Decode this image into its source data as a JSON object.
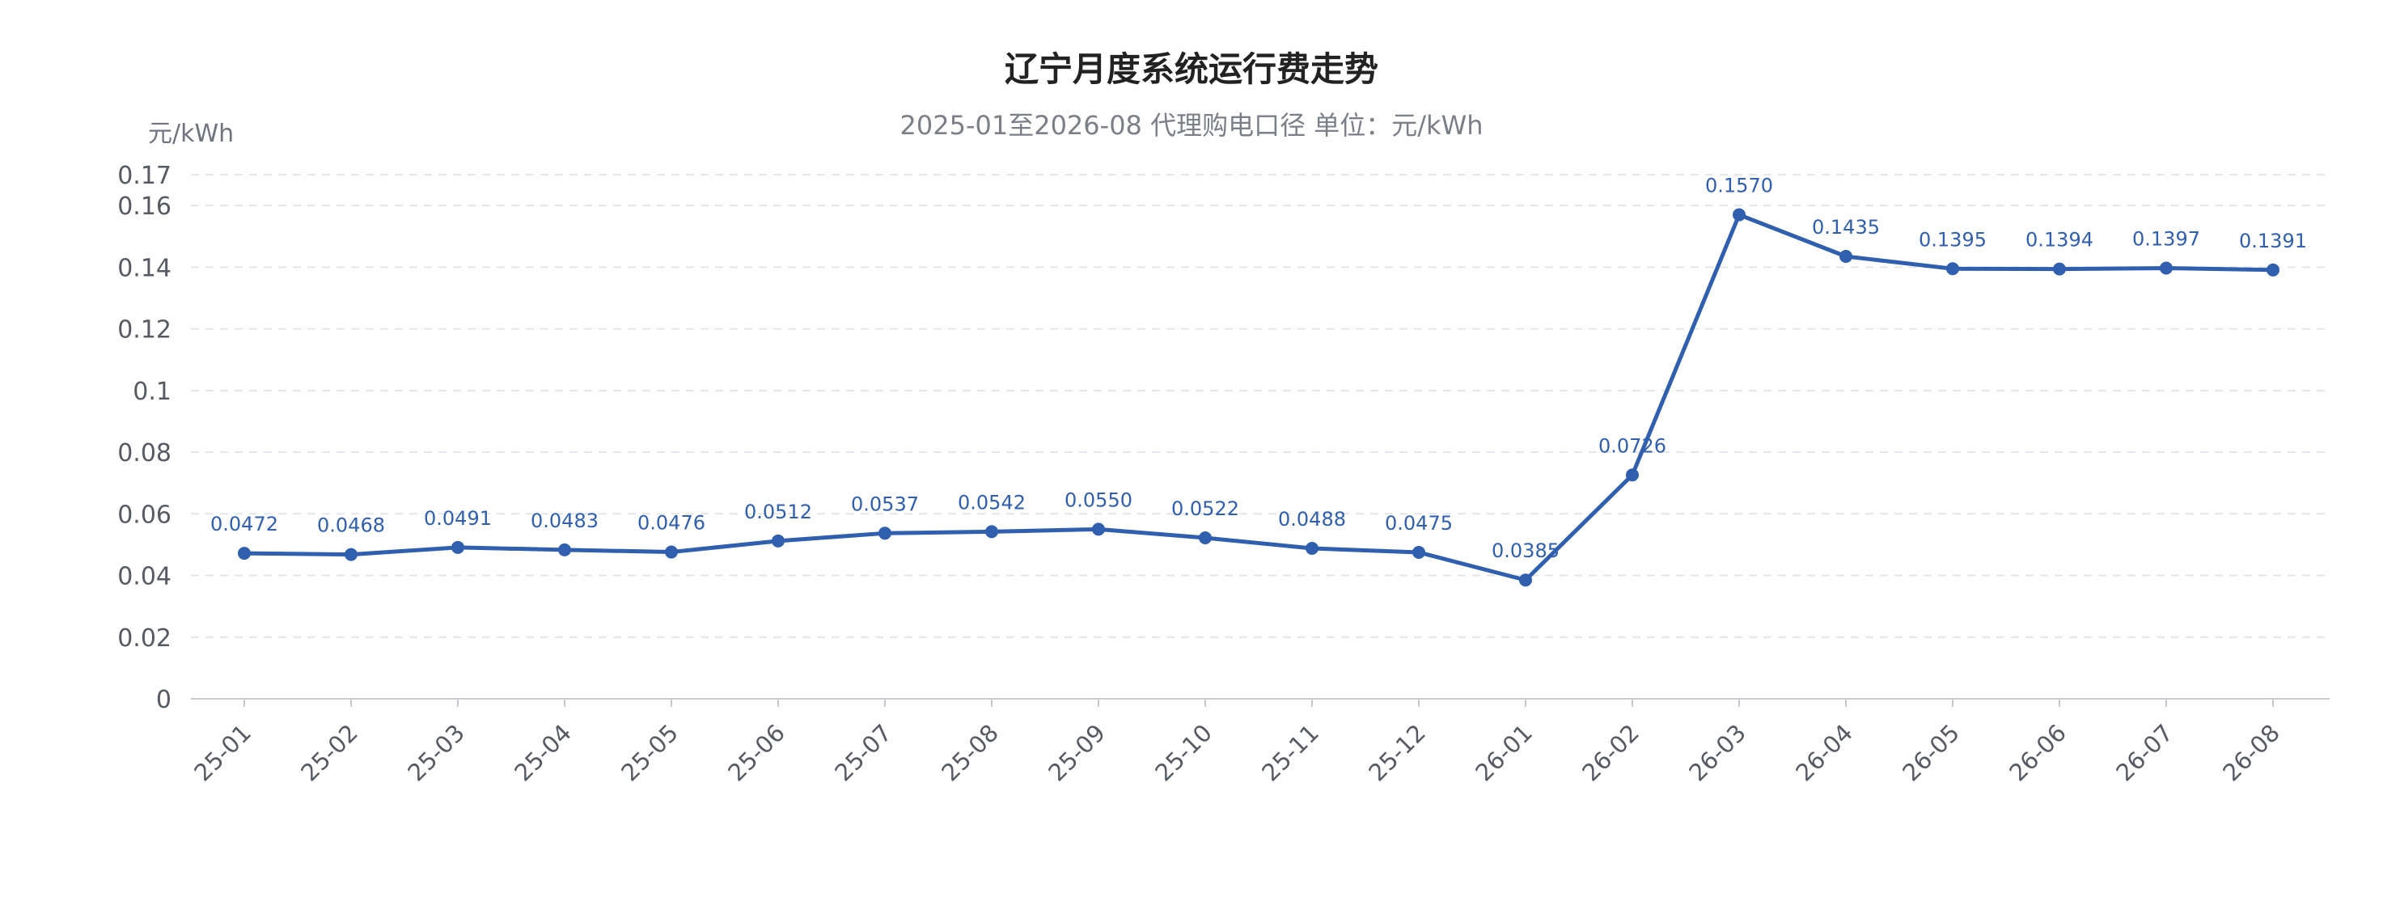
{
  "chart_data": {
    "type": "line",
    "title": "辽宁月度系统运行费走势",
    "subtitle": "2025-01至2026-08  代理购电口径  单位：元/kWh",
    "ylabel": "元/kWh",
    "xlabel": "",
    "ylim": [
      0,
      0.17
    ],
    "yticks": [
      "0",
      "0.02",
      "0.04",
      "0.06",
      "0.08",
      "0.1",
      "0.12",
      "0.14",
      "0.16",
      "0.17"
    ],
    "yticks_values": [
      0,
      0.02,
      0.04,
      0.06,
      0.08,
      0.1,
      0.12,
      0.14,
      0.16,
      0.17
    ],
    "grid": true,
    "legend": "none",
    "categories": [
      "25-01",
      "25-02",
      "25-03",
      "25-04",
      "25-05",
      "25-06",
      "25-07",
      "25-08",
      "25-09",
      "25-10",
      "25-11",
      "25-12",
      "26-01",
      "26-02",
      "26-03",
      "26-04",
      "26-05",
      "26-06",
      "26-07",
      "26-08"
    ],
    "series": [
      {
        "values": [
          0.0472,
          0.0468,
          0.0491,
          0.0483,
          0.0476,
          0.0512,
          0.0537,
          0.0542,
          0.055,
          0.0522,
          0.0488,
          0.0475,
          0.0385,
          0.0726,
          0.157,
          0.1435,
          0.1395,
          0.1394,
          0.1397,
          0.1391
        ],
        "labels": [
          "0.0472",
          "0.0468",
          "0.0491",
          "0.0483",
          "0.0476",
          "0.0512",
          "0.0537",
          "0.0542",
          "0.0550",
          "0.0522",
          "0.0488",
          "0.0475",
          "0.0385",
          "0.0726",
          "0.1570",
          "0.1435",
          "0.1395",
          "0.1394",
          "0.1397",
          "0.1391"
        ],
        "color": "#2f5fae"
      }
    ],
    "colors": {
      "line": "#2f5fae",
      "label": "#2f5fae",
      "grid": "#e3e6ea",
      "axis": "#c9ccd1",
      "tick": "#555a63"
    }
  }
}
